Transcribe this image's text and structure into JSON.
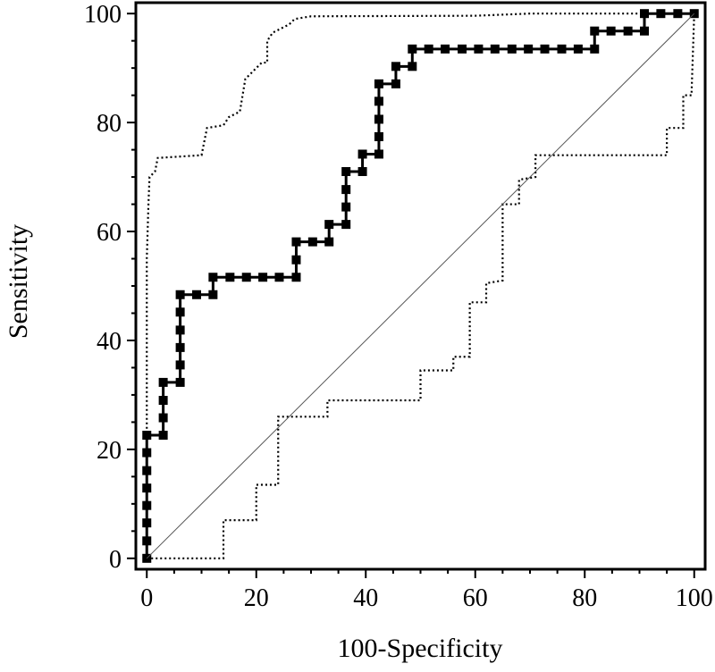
{
  "chart_data": {
    "type": "line",
    "title": "",
    "xlabel": "100-Specificity",
    "ylabel": "Sensitivity",
    "xlim": [
      -2,
      102
    ],
    "ylim": [
      -2,
      102
    ],
    "x_ticks": [
      0,
      20,
      40,
      60,
      80,
      100
    ],
    "y_ticks": [
      0,
      20,
      40,
      60,
      80,
      100
    ],
    "grid": false,
    "legend": "none",
    "series": [
      {
        "style": "solid-markers",
        "color": "#000000",
        "points": [
          [
            0,
            0
          ],
          [
            0,
            3.2
          ],
          [
            0,
            6.5
          ],
          [
            0,
            9.7
          ],
          [
            0,
            12.9
          ],
          [
            0,
            16.1
          ],
          [
            0,
            19.4
          ],
          [
            0,
            22.6
          ],
          [
            3,
            22.6
          ],
          [
            3,
            25.8
          ],
          [
            3,
            29
          ],
          [
            3,
            32.3
          ],
          [
            6.1,
            32.3
          ],
          [
            6.1,
            35.5
          ],
          [
            6.1,
            38.7
          ],
          [
            6.1,
            41.9
          ],
          [
            6.1,
            45.2
          ],
          [
            6.1,
            48.4
          ],
          [
            9.1,
            48.4
          ],
          [
            12.1,
            48.4
          ],
          [
            12.1,
            51.6
          ],
          [
            15.2,
            51.6
          ],
          [
            18.2,
            51.6
          ],
          [
            21.2,
            51.6
          ],
          [
            24.2,
            51.6
          ],
          [
            27.3,
            51.6
          ],
          [
            27.3,
            54.8
          ],
          [
            27.3,
            58.1
          ],
          [
            30.3,
            58.1
          ],
          [
            33.3,
            58.1
          ],
          [
            33.3,
            61.3
          ],
          [
            36.4,
            61.3
          ],
          [
            36.4,
            64.5
          ],
          [
            36.4,
            67.7
          ],
          [
            36.4,
            71
          ],
          [
            39.4,
            71
          ],
          [
            39.4,
            74.2
          ],
          [
            42.4,
            74.2
          ],
          [
            42.4,
            77.4
          ],
          [
            42.4,
            80.6
          ],
          [
            42.4,
            83.9
          ],
          [
            42.4,
            87.1
          ],
          [
            45.5,
            87.1
          ],
          [
            45.5,
            90.3
          ],
          [
            48.5,
            90.3
          ],
          [
            48.5,
            93.5
          ],
          [
            51.5,
            93.5
          ],
          [
            54.5,
            93.5
          ],
          [
            57.6,
            93.5
          ],
          [
            60.6,
            93.5
          ],
          [
            63.6,
            93.5
          ],
          [
            66.7,
            93.5
          ],
          [
            69.7,
            93.5
          ],
          [
            72.7,
            93.5
          ],
          [
            75.8,
            93.5
          ],
          [
            78.8,
            93.5
          ],
          [
            81.8,
            93.5
          ],
          [
            81.8,
            96.8
          ],
          [
            84.8,
            96.8
          ],
          [
            87.9,
            96.8
          ],
          [
            90.9,
            96.8
          ],
          [
            90.9,
            100
          ],
          [
            93.9,
            100
          ],
          [
            97,
            100
          ],
          [
            100,
            100
          ]
        ]
      },
      {
        "style": "dotted",
        "color": "#000000",
        "points": [
          [
            0,
            0
          ],
          [
            0,
            55
          ],
          [
            0.3,
            65
          ],
          [
            0.5,
            70
          ],
          [
            1.5,
            71
          ],
          [
            2,
            73.5
          ],
          [
            10,
            74
          ],
          [
            11,
            79
          ],
          [
            14,
            79.5
          ],
          [
            15,
            81
          ],
          [
            17,
            82
          ],
          [
            18,
            88
          ],
          [
            19,
            89
          ],
          [
            20,
            90
          ],
          [
            21,
            91
          ],
          [
            22,
            91
          ],
          [
            22,
            95
          ],
          [
            23,
            96.5
          ],
          [
            25,
            97.5
          ],
          [
            26,
            98
          ],
          [
            27,
            99
          ],
          [
            30,
            99.5
          ],
          [
            60,
            99.6
          ],
          [
            70,
            100
          ],
          [
            100,
            100
          ]
        ]
      },
      {
        "style": "dotted",
        "color": "#000000",
        "points": [
          [
            0,
            0
          ],
          [
            14,
            0
          ],
          [
            14,
            7
          ],
          [
            20,
            7
          ],
          [
            20,
            13.5
          ],
          [
            24,
            13.5
          ],
          [
            24,
            26
          ],
          [
            33,
            26
          ],
          [
            33,
            29
          ],
          [
            50,
            29
          ],
          [
            50,
            34.5
          ],
          [
            56,
            34.5
          ],
          [
            56,
            37
          ],
          [
            59,
            37
          ],
          [
            59,
            47
          ],
          [
            62,
            47
          ],
          [
            62,
            50.5
          ],
          [
            65,
            51
          ],
          [
            65,
            65
          ],
          [
            68,
            65
          ],
          [
            68,
            69.5
          ],
          [
            71,
            70
          ],
          [
            71,
            74
          ],
          [
            95,
            74
          ],
          [
            95,
            79
          ],
          [
            98,
            79
          ],
          [
            98,
            85
          ],
          [
            99.5,
            85
          ],
          [
            100,
            100
          ]
        ]
      },
      {
        "style": "thin-diagonal",
        "color": "#555555",
        "points": [
          [
            0,
            0
          ],
          [
            100,
            100
          ]
        ]
      }
    ]
  }
}
